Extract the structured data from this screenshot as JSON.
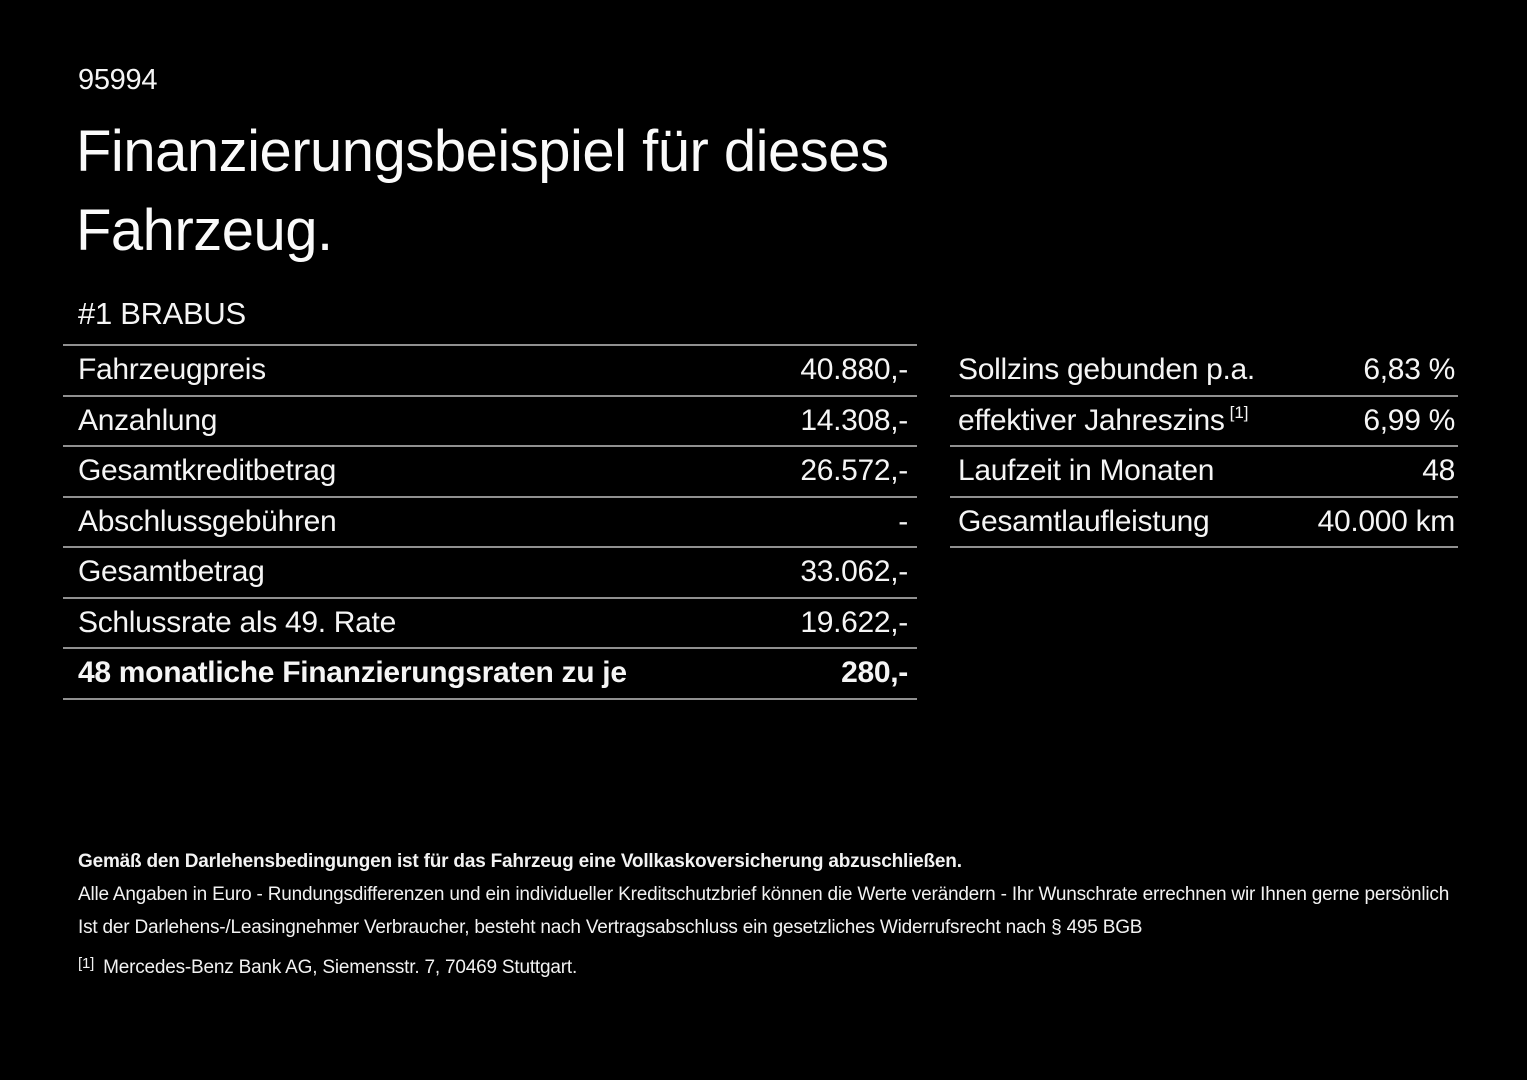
{
  "page": {
    "doc_number": "95994",
    "title_line1": "Finanzierungsbeispiel für dieses",
    "title_line2": "Fahrzeug.",
    "vehicle_name": "#1 BRABUS"
  },
  "finance_table": {
    "rows": [
      {
        "label": "Fahrzeugpreis",
        "value": "40.880,-"
      },
      {
        "label": "Anzahlung",
        "value": "14.308,-"
      },
      {
        "label": "Gesamtkreditbetrag",
        "value": "26.572,-"
      },
      {
        "label": "Abschlussgebühren",
        "value": "-"
      },
      {
        "label": "Gesamtbetrag",
        "value": "33.062,-"
      },
      {
        "label": "Schlussrate als 49. Rate",
        "value": "19.622,-"
      }
    ],
    "highlight_row": {
      "label": "48 monatliche Finanzierungsraten zu je",
      "value": "280,-"
    }
  },
  "conditions_table": {
    "rows": [
      {
        "label": "Sollzins gebunden p.a.",
        "footnote": "",
        "value": "6,83 %"
      },
      {
        "label": "effektiver Jahreszins",
        "footnote": "[1]",
        "value": "6,99 %"
      },
      {
        "label": "Laufzeit in Monaten",
        "footnote": "",
        "value": "48"
      },
      {
        "label": "Gesamtlaufleistung",
        "footnote": "",
        "value": "40.000 km"
      }
    ]
  },
  "footer": {
    "line1": "Gemäß den Darlehensbedingungen ist für das Fahrzeug eine Vollkaskoversicherung abzuschließen.",
    "line2": "Alle Angaben in Euro - Rundungsdifferenzen und ein individueller Kreditschutzbrief können die Werte verändern - Ihr Wunschrate errechnen wir Ihnen gerne persönlich",
    "line3": "Ist der Darlehens-/Leasingnehmer Verbraucher, besteht nach Vertragsabschluss ein gesetzliches Widerrufsrecht nach § 495 BGB",
    "footnote_marker": "[1]",
    "footnote_text": "Mercedes-Benz Bank AG, Siemensstr. 7, 70469 Stuttgart."
  },
  "colors": {
    "background": "#000000",
    "text": "#f5f5f5",
    "divider": "#909090"
  }
}
